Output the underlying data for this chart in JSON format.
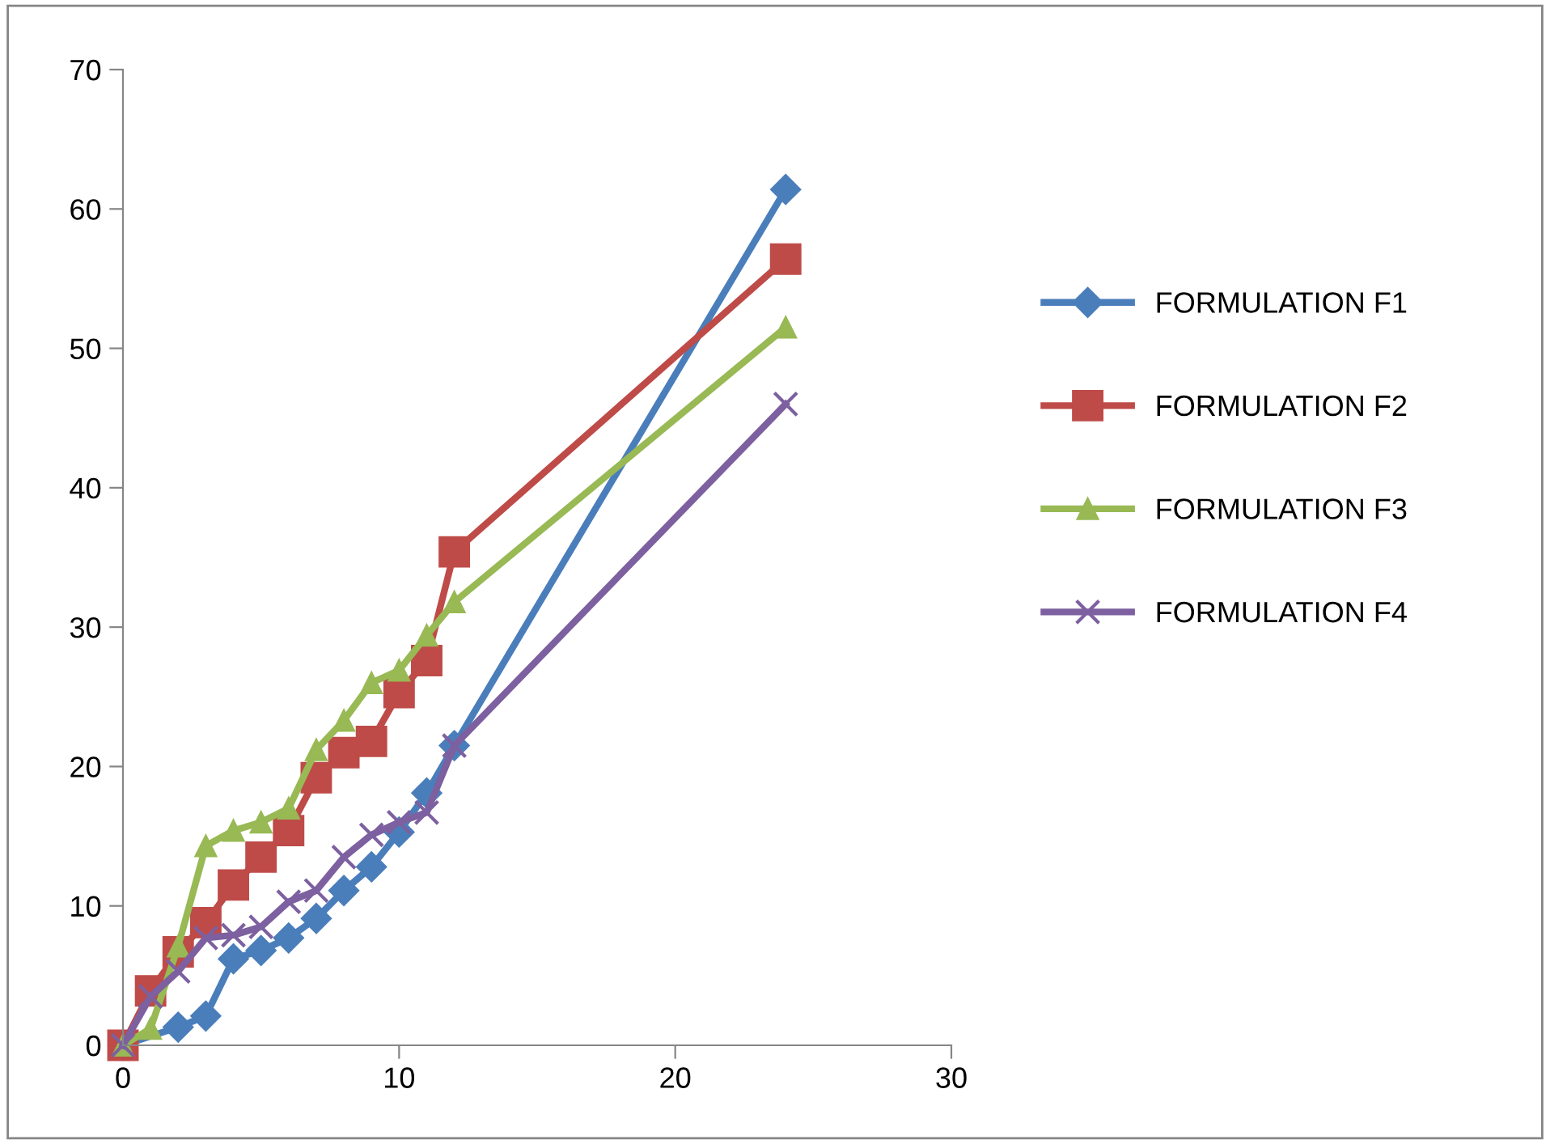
{
  "chart_data": {
    "type": "line",
    "x": [
      0,
      1,
      2,
      3,
      4,
      5,
      6,
      7,
      8,
      9,
      10,
      11,
      12,
      24
    ],
    "series": [
      {
        "name": "FORMULATION F1",
        "color": "#4a7ebb",
        "marker": "diamond",
        "x": [
          0,
          2,
          3,
          4,
          5,
          6,
          7,
          8,
          9,
          10,
          11,
          12,
          24
        ],
        "values": [
          0,
          1.3,
          2.1,
          6.2,
          6.8,
          7.7,
          9.1,
          11.1,
          12.8,
          15.3,
          18.1,
          21.5,
          61.4
        ]
      },
      {
        "name": "FORMULATION F2",
        "color": "#be4b48",
        "marker": "square",
        "values": [
          0,
          3.9,
          6.7,
          8.8,
          11.5,
          13.5,
          15.4,
          19.2,
          21.0,
          21.8,
          25.3,
          27.6,
          35.4,
          56.4
        ]
      },
      {
        "name": "FORMULATION F3",
        "color": "#98b954",
        "marker": "triangle",
        "values": [
          0,
          1.2,
          7.1,
          14.3,
          15.4,
          16.0,
          17.0,
          21.2,
          23.3,
          26.0,
          26.9,
          29.4,
          31.8,
          51.5
        ]
      },
      {
        "name": "FORMULATION F4",
        "color": "#7d60a0",
        "marker": "cross",
        "values": [
          0,
          3.5,
          5.3,
          7.7,
          7.9,
          8.5,
          10.3,
          11.1,
          13.5,
          15.1,
          16.0,
          16.7,
          21.5,
          46.0
        ]
      }
    ],
    "xlim": [
      0,
      30
    ],
    "xticks": [
      0,
      10,
      20,
      30
    ],
    "ylim": [
      0,
      70
    ],
    "yticks": [
      0,
      10,
      20,
      30,
      40,
      50,
      60,
      70
    ],
    "grid": false,
    "legend": "right",
    "line_style": "solid"
  }
}
